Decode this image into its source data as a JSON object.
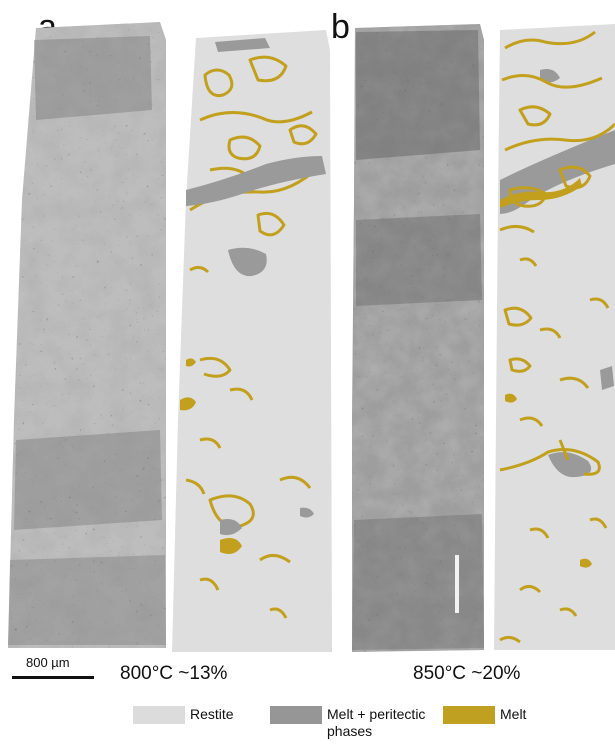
{
  "panels": {
    "a": {
      "letter": "a",
      "caption": "800°C ~13%"
    },
    "b": {
      "letter": "b",
      "caption": "850°C ~20%"
    }
  },
  "scale_bar": {
    "label": "800 µm"
  },
  "legend": [
    {
      "label": "Restite",
      "color": "#dcdcdc"
    },
    {
      "label": "Melt + peritectic phases",
      "color": "#969696"
    },
    {
      "label": "Melt",
      "color": "#c0a020"
    }
  ],
  "colors": {
    "restite": "#dedede",
    "melt_peritectic": "#9a9a9a",
    "melt": "#c2a01e",
    "bse_light": "#bdbdbd",
    "bse_dark": "#6e6e6e"
  }
}
